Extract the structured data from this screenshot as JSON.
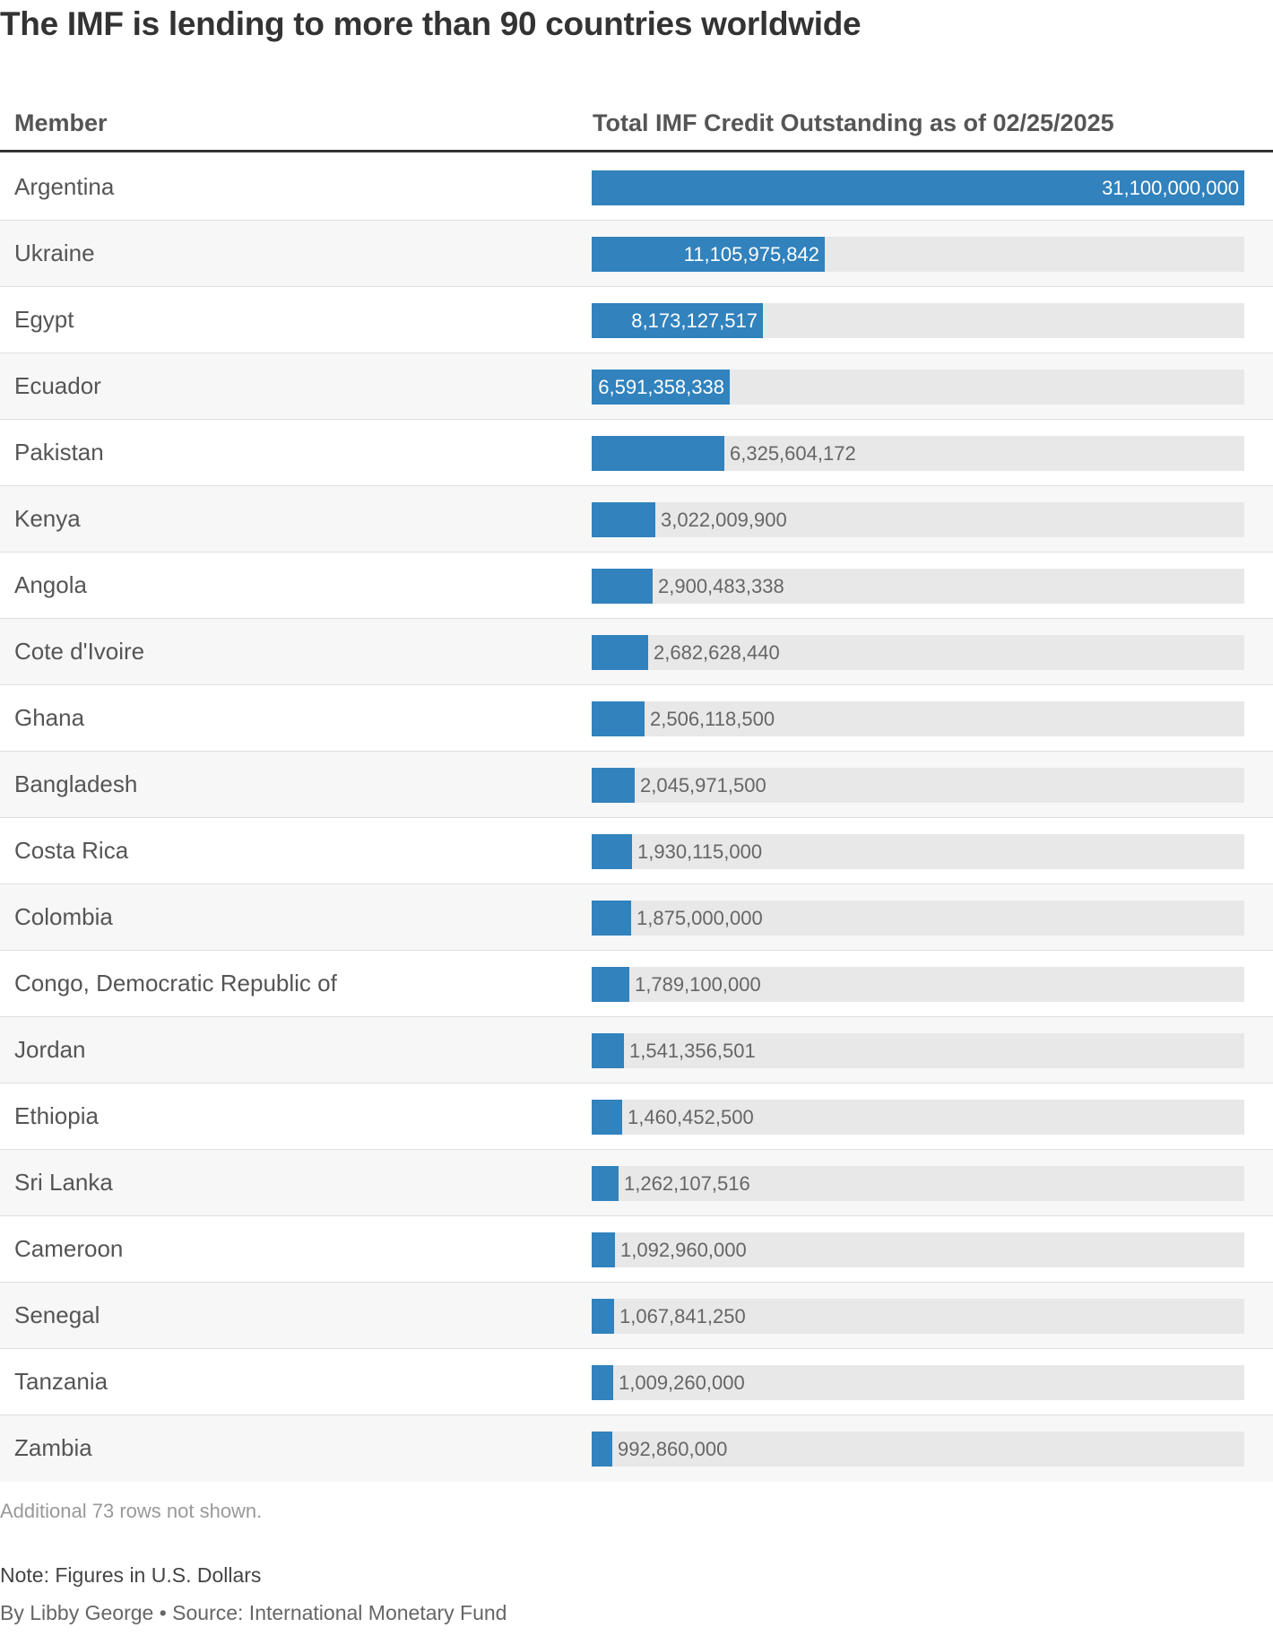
{
  "title": "The IMF is lending to more than 90 countries worldwide",
  "header": {
    "member_label": "Member",
    "value_label": "Total IMF Credit Outstanding as of 02/25/2025"
  },
  "colors": {
    "bar": "#3182bd",
    "track": "#e8e8e8"
  },
  "chart_data": {
    "type": "bar",
    "title": "The IMF is lending to more than 90 countries worldwide",
    "xlabel": "Total IMF Credit Outstanding as of 02/25/2025",
    "ylabel": "Member",
    "xlim": [
      0,
      31100000000
    ],
    "categories": [
      "Argentina",
      "Ukraine",
      "Egypt",
      "Ecuador",
      "Pakistan",
      "Kenya",
      "Angola",
      "Cote d'Ivoire",
      "Ghana",
      "Bangladesh",
      "Costa Rica",
      "Colombia",
      "Congo, Democratic Republic of",
      "Jordan",
      "Ethiopia",
      "Sri Lanka",
      "Cameroon",
      "Senegal",
      "Tanzania",
      "Zambia"
    ],
    "values": [
      31100000000,
      11105975842,
      8173127517,
      6591358338,
      6325604172,
      3022009900,
      2900483338,
      2682628440,
      2506118500,
      2045971500,
      1930115000,
      1875000000,
      1789100000,
      1541356501,
      1460452500,
      1262107516,
      1092960000,
      1067841250,
      1009260000,
      992860000
    ],
    "value_labels": [
      "31,100,000,000",
      "11,105,975,842",
      "8,173,127,517",
      "6,591,358,338",
      "6,325,604,172",
      "3,022,009,900",
      "2,900,483,338",
      "2,682,628,440",
      "2,506,118,500",
      "2,045,971,500",
      "1,930,115,000",
      "1,875,000,000",
      "1,789,100,000",
      "1,541,356,501",
      "1,460,452,500",
      "1,262,107,516",
      "1,092,960,000",
      "1,067,841,250",
      "1,009,260,000",
      "992,860,000"
    ]
  },
  "footer": {
    "not_shown": "Additional 73 rows not shown.",
    "note": "Note: Figures in U.S. Dollars",
    "byline": "By Libby George • Source: International Monetary Fund"
  }
}
